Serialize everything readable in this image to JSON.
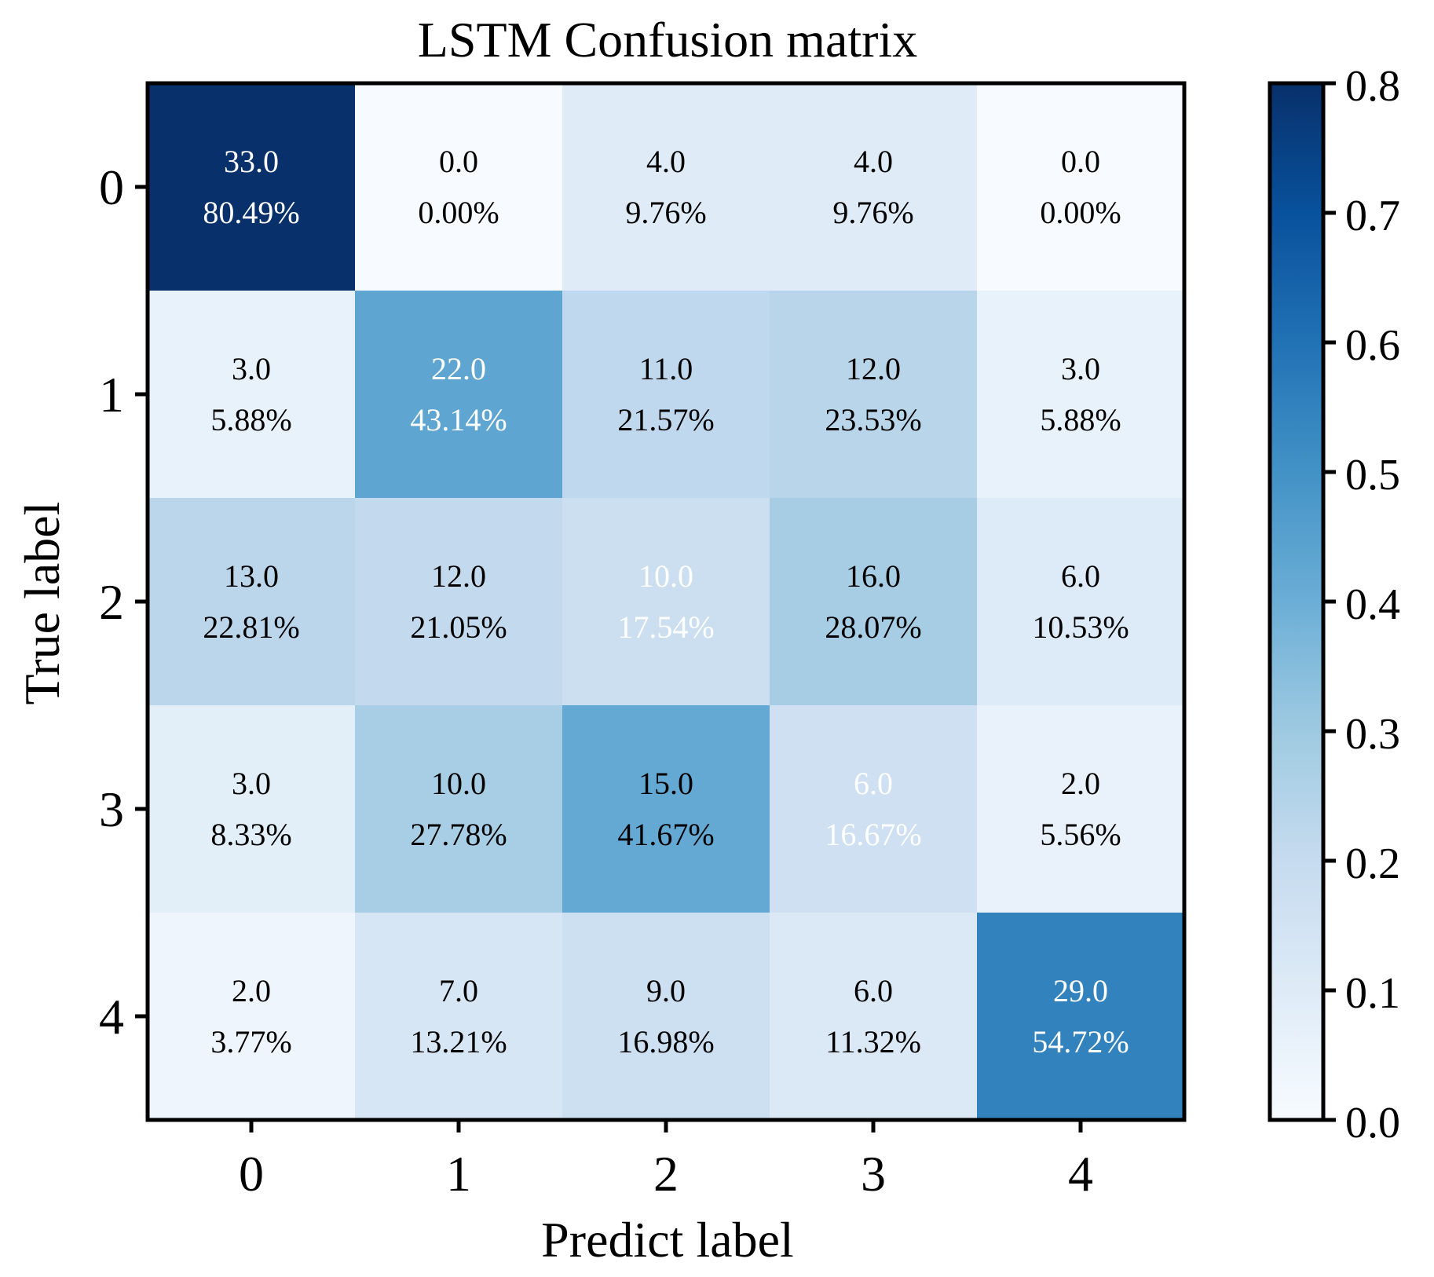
{
  "chart_data": {
    "type": "heatmap",
    "title": "LSTM Confusion matrix",
    "xlabel": "Predict label",
    "ylabel": "True label",
    "x_tick_labels": [
      "0",
      "1",
      "2",
      "3",
      "4"
    ],
    "y_tick_labels": [
      "0",
      "1",
      "2",
      "3",
      "4"
    ],
    "colormap": "Blues",
    "vmin": 0.0,
    "vmax": 0.8,
    "colorbar_ticks": [
      "0.0",
      "0.1",
      "0.2",
      "0.3",
      "0.4",
      "0.5",
      "0.6",
      "0.7",
      "0.8"
    ],
    "rows": [
      {
        "true_label": "0",
        "counts": [
          "33.0",
          "0.0",
          "4.0",
          "4.0",
          "0.0"
        ],
        "percents": [
          "80.49%",
          "0.00%",
          "9.76%",
          "9.76%",
          "0.00%"
        ],
        "fractions": [
          0.8049,
          0.0,
          0.0976,
          0.0976,
          0.0
        ]
      },
      {
        "true_label": "1",
        "counts": [
          "3.0",
          "22.0",
          "11.0",
          "12.0",
          "3.0"
        ],
        "percents": [
          "5.88%",
          "43.14%",
          "21.57%",
          "23.53%",
          "5.88%"
        ],
        "fractions": [
          0.0588,
          0.4314,
          0.2157,
          0.2353,
          0.0588
        ]
      },
      {
        "true_label": "2",
        "counts": [
          "13.0",
          "12.0",
          "10.0",
          "16.0",
          "6.0"
        ],
        "percents": [
          "22.81%",
          "21.05%",
          "17.54%",
          "28.07%",
          "10.53%"
        ],
        "fractions": [
          0.2281,
          0.2105,
          0.1754,
          0.2807,
          0.1053
        ]
      },
      {
        "true_label": "3",
        "counts": [
          "3.0",
          "10.0",
          "15.0",
          "6.0",
          "2.0"
        ],
        "percents": [
          "8.33%",
          "27.78%",
          "41.67%",
          "16.67%",
          "5.56%"
        ],
        "fractions": [
          0.0833,
          0.2778,
          0.4167,
          0.1667,
          0.0556
        ]
      },
      {
        "true_label": "4",
        "counts": [
          "2.0",
          "7.0",
          "9.0",
          "6.0",
          "29.0"
        ],
        "percents": [
          "3.77%",
          "13.21%",
          "16.98%",
          "11.32%",
          "54.72%"
        ],
        "fractions": [
          0.0377,
          0.1321,
          0.1698,
          0.1132,
          0.5472
        ]
      }
    ],
    "annotation_text_colors": [
      [
        "#ffffff",
        "#000000",
        "#000000",
        "#000000",
        "#000000"
      ],
      [
        "#000000",
        "#ffffff",
        "#000000",
        "#000000",
        "#000000"
      ],
      [
        "#000000",
        "#000000",
        "#ffffff",
        "#000000",
        "#000000"
      ],
      [
        "#000000",
        "#000000",
        "#000000",
        "#ffffff",
        "#000000"
      ],
      [
        "#000000",
        "#000000",
        "#000000",
        "#000000",
        "#ffffff"
      ]
    ]
  }
}
